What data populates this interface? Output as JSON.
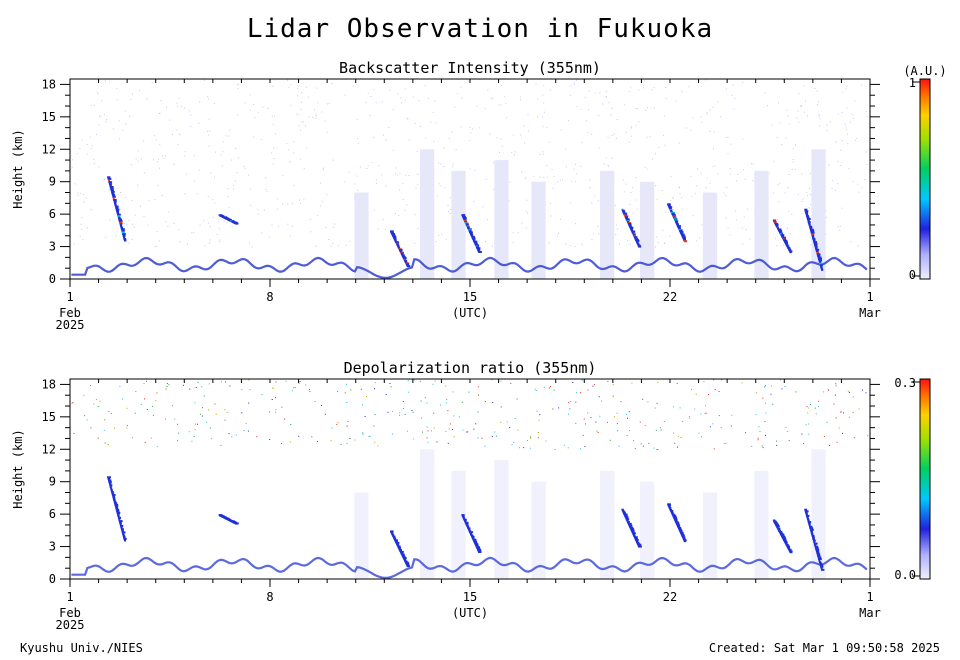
{
  "page": {
    "title": "Lidar Observation in Fukuoka",
    "footer_left": "Kyushu Univ./NIES",
    "footer_right": "Created: Sat Mar  1 09:50:58 2025"
  },
  "chart_data": [
    {
      "type": "heatmap",
      "title": "Backscatter Intensity (355nm)",
      "ylabel": "Height (km)",
      "xlabel": "(UTC)",
      "x_ticks": [
        {
          "day": 1,
          "label": "1",
          "sub": "Feb",
          "sub2": "2025"
        },
        {
          "day": 8,
          "label": "8"
        },
        {
          "day": 15,
          "label": "15",
          "sub": "(UTC)"
        },
        {
          "day": 22,
          "label": "22"
        },
        {
          "day": 29,
          "label": "1",
          "sub": "Mar"
        }
      ],
      "xlim": [
        1,
        29
      ],
      "y_ticks": [
        0,
        3,
        6,
        9,
        12,
        15,
        18
      ],
      "ylim": [
        0,
        18.5
      ],
      "colorbar": {
        "unit": "(A.U.)",
        "min_label": "0",
        "max_label": "1",
        "range": [
          0,
          1
        ]
      },
      "colors": {
        "low": "#d8d8f8",
        "mid": "#2030d8",
        "high": "#e83010"
      }
    },
    {
      "type": "heatmap",
      "title": "Depolarization ratio (355nm)",
      "ylabel": "Height (km)",
      "xlabel": "(UTC)",
      "x_ticks": [
        {
          "day": 1,
          "label": "1",
          "sub": "Feb",
          "sub2": "2025"
        },
        {
          "day": 8,
          "label": "8"
        },
        {
          "day": 15,
          "label": "15",
          "sub": "(UTC)"
        },
        {
          "day": 22,
          "label": "22"
        },
        {
          "day": 29,
          "label": "1",
          "sub": "Mar"
        }
      ],
      "xlim": [
        1,
        29
      ],
      "y_ticks": [
        0,
        3,
        6,
        9,
        12,
        15,
        18
      ],
      "ylim": [
        0,
        18.5
      ],
      "colorbar": {
        "unit": "",
        "min_label": "0.0",
        "max_label": "0.3",
        "range": [
          0,
          0.3
        ]
      },
      "colors": {
        "low": "#d8d8f8",
        "mid": "#2030d8",
        "high": "#e83010"
      }
    }
  ]
}
